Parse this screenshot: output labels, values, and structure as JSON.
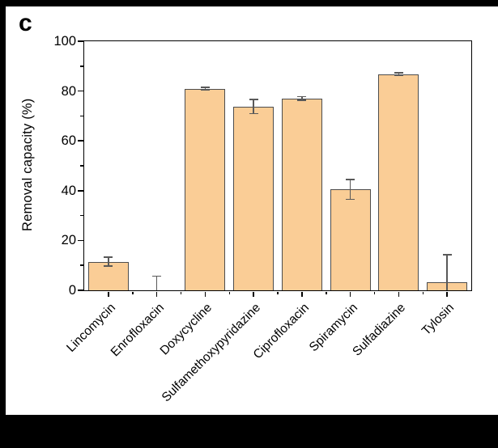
{
  "panel_label": "c",
  "colors": {
    "frame": "#000000",
    "background": "#ffffff",
    "axis": "#000000",
    "bar_fill": "#facd96",
    "bar_edge": "#4d4d4d",
    "error_bar": "#595959"
  },
  "chart_data": {
    "type": "bar",
    "title": "",
    "xlabel": "",
    "ylabel": "Removal capacity (%)",
    "ylim": [
      0,
      100
    ],
    "y_major_ticks": [
      0,
      20,
      40,
      60,
      80,
      100
    ],
    "y_minor_ticks": [
      10,
      30,
      50,
      70,
      90
    ],
    "grid": "off",
    "legend": "none",
    "categories": [
      "Lincomycin",
      "Enrofloxacin",
      "Doxycycline",
      "Sulfamethoxypyridazine",
      "Ciprofloxacin",
      "Spiramycin",
      "Sulfadiazine",
      "Tylosin"
    ],
    "values": [
      11.5,
      0,
      81,
      73.8,
      77,
      40.5,
      86.8,
      3.3
    ],
    "errors": [
      1.8,
      5.7,
      0.5,
      2.8,
      0.7,
      3.9,
      0.5,
      11
    ]
  }
}
